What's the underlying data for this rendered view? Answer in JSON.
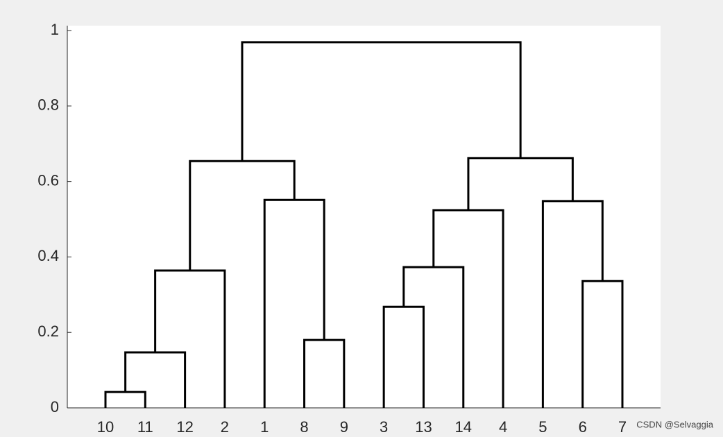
{
  "chart_data": {
    "type": "dendrogram",
    "ylim": [
      0,
      1.013
    ],
    "yticks": [
      0,
      0.2,
      0.4,
      0.6,
      0.8,
      1
    ],
    "color": "#000000",
    "watermark": "CSDN @Selvaggia",
    "tree": {
      "height": 0.969,
      "children": [
        {
          "height": 0.654,
          "children": [
            {
              "height": 0.364,
              "children": [
                {
                  "height": 0.147,
                  "children": [
                    {
                      "height": 0.042,
                      "children": [
                        {
                          "label": "10"
                        },
                        {
                          "label": "11"
                        }
                      ]
                    },
                    {
                      "label": "12"
                    }
                  ]
                },
                {
                  "label": "2"
                }
              ]
            },
            {
              "height": 0.551,
              "children": [
                {
                  "label": "1"
                },
                {
                  "height": 0.18,
                  "children": [
                    {
                      "label": "8"
                    },
                    {
                      "label": "9"
                    }
                  ]
                }
              ]
            }
          ]
        },
        {
          "height": 0.662,
          "children": [
            {
              "height": 0.524,
              "children": [
                {
                  "height": 0.373,
                  "children": [
                    {
                      "height": 0.268,
                      "children": [
                        {
                          "label": "3"
                        },
                        {
                          "label": "13"
                        }
                      ]
                    },
                    {
                      "label": "14"
                    }
                  ]
                },
                {
                  "label": "4"
                }
              ]
            },
            {
              "height": 0.548,
              "children": [
                {
                  "label": "5"
                },
                {
                  "height": 0.336,
                  "children": [
                    {
                      "label": "6"
                    },
                    {
                      "label": "7"
                    }
                  ]
                }
              ]
            }
          ]
        }
      ]
    }
  }
}
